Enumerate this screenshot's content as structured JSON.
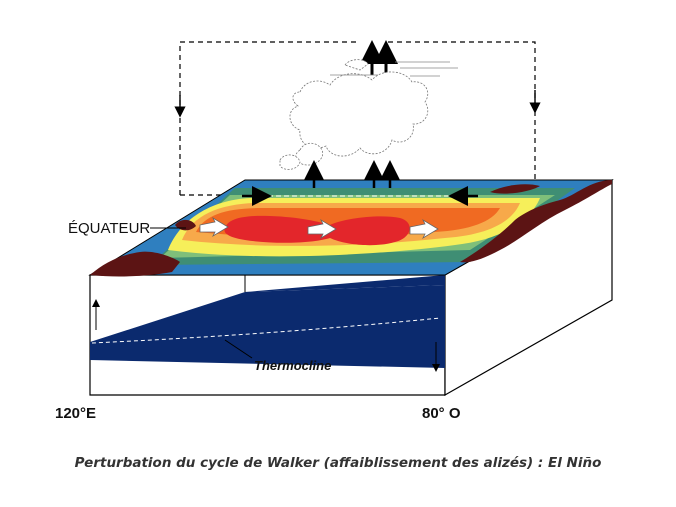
{
  "labels": {
    "equator": "ÉQUATEUR",
    "thermocline": "Thermocline",
    "west_longitude": "120°E",
    "east_longitude": "80° O"
  },
  "caption": "Perturbation du cycle de Walker (affaiblissement des alizés) : El Niño",
  "colors": {
    "deep_ocean": "#0b2a6e",
    "land": "#5c1414",
    "warm_core": "#e3262b",
    "orange": "#f06a22",
    "light_orange": "#f7a94a",
    "yellow": "#f6ef5a",
    "green": "#7fbf7a",
    "teal": "#3f8e74",
    "blue": "#2f7fbf"
  }
}
